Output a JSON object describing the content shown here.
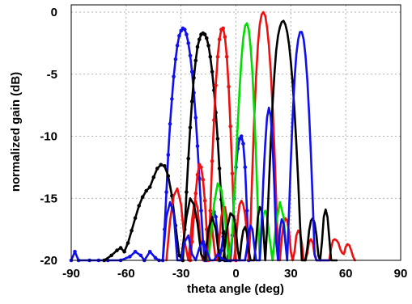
{
  "chart_data": {
    "type": "line",
    "title": "",
    "xlabel": "theta angle (deg)",
    "ylabel": "normalized gain (dB)",
    "xlim": [
      -90,
      90
    ],
    "ylim": [
      -20,
      0.5
    ],
    "xticks": [
      -90,
      -60,
      -30,
      0,
      30,
      60,
      90
    ],
    "yticks": [
      0,
      -5,
      -10,
      -15,
      -20
    ],
    "xtick_labels": [
      "-90",
      "-60",
      "-30",
      "0",
      "30",
      "60",
      "90"
    ],
    "ytick_labels": [
      "0",
      "-5",
      "-10",
      "-15",
      "-20"
    ],
    "grid": true,
    "legend": "none",
    "series": [
      {
        "color": "#1010ee",
        "markers": true,
        "x": [
          -90,
          -88,
          -86,
          -80,
          -75,
          -70,
          -63,
          -58,
          -55,
          -52,
          -50,
          -47,
          -44,
          -42,
          -40,
          -39,
          -38,
          -37,
          -36,
          -35,
          -34,
          -33,
          -32,
          -31,
          -30,
          -29,
          -28,
          -27,
          -26,
          -25,
          -24,
          -23,
          -22,
          -21,
          -20,
          -19,
          -18,
          -17,
          -16,
          -15,
          -14,
          -13,
          -12,
          -11,
          -10,
          -9,
          -8,
          -7,
          -6,
          -5,
          -4,
          -3,
          -2,
          -1,
          0,
          1,
          2,
          3,
          4,
          5,
          6,
          7
        ],
        "y": [
          -20,
          -19.3,
          -20,
          -20,
          -20,
          -20,
          -20,
          -19.7,
          -19.3,
          -19.6,
          -20,
          -19.3,
          -19.8,
          -20,
          -20,
          -17.5,
          -14.5,
          -11.5,
          -9,
          -7,
          -5.2,
          -3.8,
          -2.7,
          -1.9,
          -1.5,
          -1.3,
          -1.4,
          -1.8,
          -2.5,
          -3.5,
          -4.8,
          -6.5,
          -8.5,
          -10.8,
          -13.4,
          -16,
          -18.5,
          -20,
          -20,
          -19,
          -17.4,
          -16.3,
          -16.1,
          -16.5,
          -18,
          -20,
          -19.2,
          -18.1,
          -17.7,
          -18.3,
          -20,
          -20,
          -18,
          -15,
          -12.5,
          -11,
          -10.2,
          -10,
          -10.6,
          -12.5,
          -16,
          -20
        ]
      },
      {
        "color": "#000000",
        "markers": true,
        "x": [
          -72,
          -68,
          -65,
          -63,
          -61,
          -59,
          -57,
          -55,
          -53,
          -51,
          -49,
          -47,
          -45,
          -43,
          -41,
          -39,
          -37,
          -35,
          -33,
          -31,
          -29,
          -28,
          -27,
          -26,
          -25,
          -24,
          -23,
          -22,
          -21,
          -20,
          -19,
          -18,
          -17,
          -16,
          -15,
          -14,
          -13,
          -12,
          -11,
          -10,
          -9,
          -8,
          -7,
          -6,
          -5,
          -4,
          -3
        ],
        "y": [
          -20,
          -19.6,
          -19.2,
          -19,
          -19.3,
          -18.6,
          -17.6,
          -16.6,
          -15.6,
          -14.9,
          -14.4,
          -14.1,
          -13.3,
          -12.6,
          -12.3,
          -12.4,
          -13.2,
          -14.8,
          -17.2,
          -19.6,
          -20,
          -17.5,
          -14.5,
          -11.8,
          -9.3,
          -7.2,
          -5.3,
          -3.9,
          -2.8,
          -2.2,
          -1.8,
          -1.7,
          -1.8,
          -2.1,
          -2.7,
          -3.6,
          -4.8,
          -6.3,
          -8.1,
          -10.2,
          -12.6,
          -15.1,
          -17.8,
          -20,
          -20,
          -19.2,
          -20
        ]
      },
      {
        "color": "#ee1010",
        "markers": true,
        "x": [
          -25,
          -24,
          -23,
          -22,
          -21,
          -20,
          -19,
          -18,
          -17,
          -16,
          -15,
          -14,
          -13,
          -12,
          -11,
          -10,
          -9,
          -8,
          -7,
          -6,
          -5,
          -4,
          -3,
          -2,
          -1,
          0
        ],
        "y": [
          -20,
          -18.5,
          -16.5,
          -14.6,
          -13.1,
          -12.3,
          -12.5,
          -13.5,
          -15.2,
          -17.5,
          -20,
          -16,
          -12,
          -8.7,
          -5.9,
          -3.6,
          -2.2,
          -1.4,
          -1.3,
          -2,
          -3.6,
          -6,
          -9.2,
          -13,
          -17,
          -20
        ]
      },
      {
        "color": "#ee1010",
        "markers": false,
        "x": [
          -38,
          -36,
          -34,
          -32,
          -30,
          -28,
          -26,
          -25,
          -24,
          -23,
          -22,
          -21,
          -20,
          -19,
          -18,
          -17,
          -16,
          -15,
          -14,
          -13,
          -12,
          -11,
          -10,
          -9,
          -8,
          -7,
          -6,
          -5,
          -4,
          -3,
          -2,
          -1,
          0,
          1,
          2,
          3,
          4,
          5,
          6,
          7,
          8,
          9,
          10,
          11,
          12,
          13,
          14,
          15,
          16,
          17,
          18,
          19,
          20,
          21,
          22,
          23,
          24,
          25,
          26,
          27,
          28,
          29,
          30,
          31,
          32,
          33,
          34,
          35,
          36,
          37,
          38,
          39,
          40,
          41,
          42,
          43,
          44,
          45,
          46,
          47,
          48,
          49,
          50,
          51,
          52,
          53,
          54,
          55,
          56,
          57,
          58,
          59,
          60,
          61,
          62,
          63,
          64,
          65
        ],
        "y": [
          -20,
          -16.8,
          -14.8,
          -14.2,
          -15.5,
          -18.5,
          -20,
          -18.5,
          -16.8,
          -15.6,
          -15.2,
          -15.8,
          -17.3,
          -19.5,
          -20,
          -20,
          -18.6,
          -17.4,
          -17,
          -17.4,
          -18.8,
          -20,
          -20,
          -18.2,
          -16.5,
          -15.7,
          -15.7,
          -16.6,
          -18.5,
          -20,
          -20,
          -20,
          -18.5,
          -16.6,
          -15.5,
          -15.2,
          -15.5,
          -16.3,
          -17.8,
          -20,
          -17,
          -12.5,
          -8.5,
          -5.2,
          -2.7,
          -1,
          -0.2,
          0,
          -0.3,
          -1.2,
          -2.7,
          -4.8,
          -7.6,
          -11,
          -15,
          -19.5,
          -20,
          -18.2,
          -17.1,
          -16.6,
          -16.8,
          -17.7,
          -19.3,
          -20,
          -19.3,
          -18,
          -17.6,
          -17.8,
          -18.6,
          -20,
          -20,
          -19.4,
          -18.5,
          -18.3,
          -18.6,
          -19.6,
          -20,
          -20,
          -20,
          -20,
          -20,
          -20,
          -20,
          -20,
          -19,
          -18.4,
          -18.3,
          -18.4,
          -18.6,
          -19.1,
          -19.4,
          -19.5,
          -18.9,
          -18.7,
          -18.8,
          -19.2,
          -19.7,
          -20
        ]
      },
      {
        "color": "#00dd00",
        "markers": false,
        "x": [
          -15,
          -12,
          -10,
          -8,
          -6,
          -4,
          -2,
          0,
          1,
          2,
          3,
          4,
          5,
          6,
          7,
          8,
          9,
          10,
          11,
          12,
          13,
          14,
          15,
          16,
          17,
          18,
          20,
          22,
          24,
          26,
          28
        ],
        "y": [
          -20,
          -15.5,
          -13.8,
          -14.3,
          -16.5,
          -20,
          -18,
          -12,
          -9,
          -6.2,
          -3.8,
          -2.1,
          -1.1,
          -0.9,
          -1.4,
          -2.8,
          -5,
          -8,
          -11.8,
          -16,
          -20,
          -17.8,
          -16.3,
          -16,
          -16.4,
          -17.8,
          -20,
          -17,
          -15.3,
          -16.5,
          -20
        ]
      },
      {
        "color": "#000000",
        "markers": false,
        "x": [
          -30,
          -27,
          -25,
          -23,
          -21,
          -19,
          -17,
          -15,
          -13,
          -11,
          -9,
          -7,
          -5,
          -3,
          -1,
          0,
          1,
          2,
          3,
          4,
          5,
          6,
          7,
          8,
          9,
          10,
          11,
          12,
          13,
          14,
          15,
          16,
          17,
          18,
          19,
          20,
          21,
          22,
          23,
          24,
          25,
          26,
          27,
          28,
          29,
          30,
          31,
          32,
          33,
          34,
          35,
          36,
          37,
          38,
          39,
          40,
          41,
          42,
          43,
          44,
          45,
          46,
          47,
          48,
          49,
          50,
          51,
          52,
          53,
          54,
          55
        ],
        "y": [
          -20,
          -16.5,
          -15,
          -15.5,
          -17,
          -19.5,
          -20,
          -17.5,
          -16.5,
          -17.5,
          -20,
          -20,
          -17.5,
          -16.2,
          -16.5,
          -17.6,
          -19.2,
          -20,
          -18.5,
          -17.6,
          -17.3,
          -17.8,
          -19.2,
          -20,
          -20,
          -20,
          -18.5,
          -16.5,
          -15.7,
          -16,
          -17.5,
          -20,
          -17.5,
          -14,
          -10.5,
          -7.5,
          -5,
          -3.1,
          -1.9,
          -1.2,
          -0.8,
          -0.7,
          -1,
          -1.6,
          -2.6,
          -4,
          -5.8,
          -8,
          -10.6,
          -13.6,
          -17,
          -20,
          -20,
          -20,
          -19,
          -17.6,
          -16.8,
          -16.6,
          -17,
          -18,
          -19.6,
          -20,
          -18.5,
          -16.5,
          -15.9,
          -16.5,
          -18.2,
          -20,
          -20,
          -20,
          -20
        ]
      },
      {
        "color": "#1010ee",
        "markers": false,
        "x": [
          -40,
          -38,
          -36,
          -34,
          -32,
          -30,
          -28,
          -26,
          -24,
          -22,
          -20,
          -18,
          -16,
          -14,
          -12,
          -10,
          -8,
          -6,
          -4,
          -2,
          0,
          1,
          2,
          3,
          4,
          5,
          6,
          7,
          8,
          9,
          10,
          11,
          12,
          13,
          14,
          15,
          16,
          17,
          18,
          19,
          20,
          21,
          22,
          23,
          24,
          25,
          26,
          27,
          28,
          29,
          30,
          31,
          32,
          33,
          34,
          35,
          36,
          37,
          38,
          39,
          40,
          41,
          42,
          43,
          44,
          45,
          46,
          47,
          48,
          49,
          50,
          51
        ],
        "y": [
          -20,
          -16.5,
          -15.3,
          -16.2,
          -20,
          -20,
          -18.5,
          -18,
          -19.5,
          -20,
          -19,
          -18.4,
          -19.2,
          -20,
          -20,
          -19.5,
          -19.8,
          -20,
          -20,
          -20,
          -20,
          -20,
          -20,
          -20,
          -20,
          -20,
          -19,
          -17.8,
          -17.2,
          -17.5,
          -18.8,
          -20,
          -20,
          -20,
          -17,
          -13.5,
          -10.6,
          -8.5,
          -7.7,
          -8.4,
          -10.6,
          -14.2,
          -18.5,
          -20,
          -17.5,
          -16.7,
          -17,
          -18.6,
          -20,
          -16,
          -12,
          -8.4,
          -5.4,
          -3.4,
          -2.2,
          -1.6,
          -1.6,
          -2.2,
          -3.5,
          -5.5,
          -8.2,
          -11.6,
          -15.5,
          -19.5,
          -20,
          -20,
          -20,
          -20,
          -20,
          -20,
          -20,
          -20
        ]
      }
    ]
  }
}
